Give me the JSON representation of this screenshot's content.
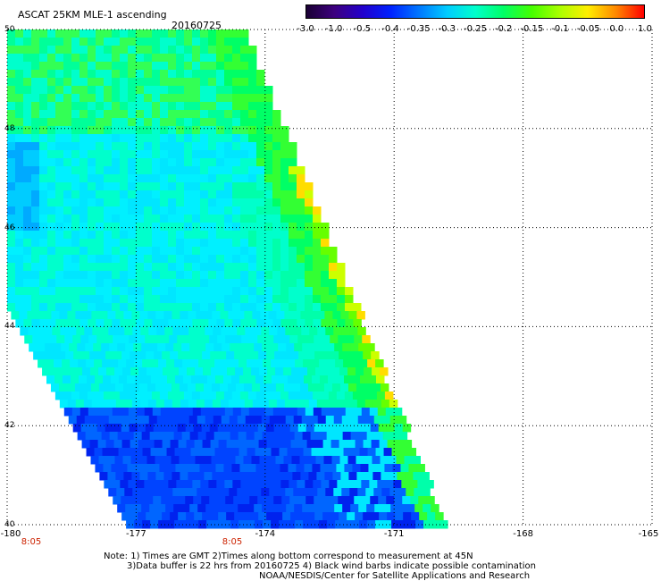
{
  "header": {
    "title": "ASCAT 25KM MLE-1 ascending",
    "date": "20160725"
  },
  "colorbar": {
    "labels": [
      "-3.0",
      "-1.0",
      "-0.5",
      "-0.4",
      "-0.35",
      "-0.3",
      "-0.25",
      "-0.2",
      "-0.15",
      "-0.1",
      "-0.05",
      "0.0",
      "1.0"
    ],
    "colors": [
      "#1a0033",
      "#3d007f",
      "#2200cc",
      "#0022ff",
      "#0077ff",
      "#00ccff",
      "#00ffcc",
      "#00ff66",
      "#44ff00",
      "#aaff00",
      "#ffee00",
      "#ff8800",
      "#ff0000"
    ]
  },
  "axes": {
    "x_ticks": [
      "-180",
      "-177",
      "-174",
      "-171",
      "-168",
      "-165"
    ],
    "y_ticks": [
      "50",
      "48",
      "46",
      "44",
      "42",
      "40"
    ],
    "lon_range": [
      -180,
      -165
    ],
    "lat_range": [
      40,
      50
    ],
    "grid": "dotted"
  },
  "times": [
    "8:05",
    "8:05"
  ],
  "notes": {
    "line1": "Note: 1) Times are GMT 2)Times along bottom correspond to measurement at 45N",
    "line2": "3)Data buffer is 22 hrs from 20160725 4) Black wind barbs indicate possible contamination",
    "line3": "NOAA/NESDIS/Center for Satellite Applications and Research"
  }
}
